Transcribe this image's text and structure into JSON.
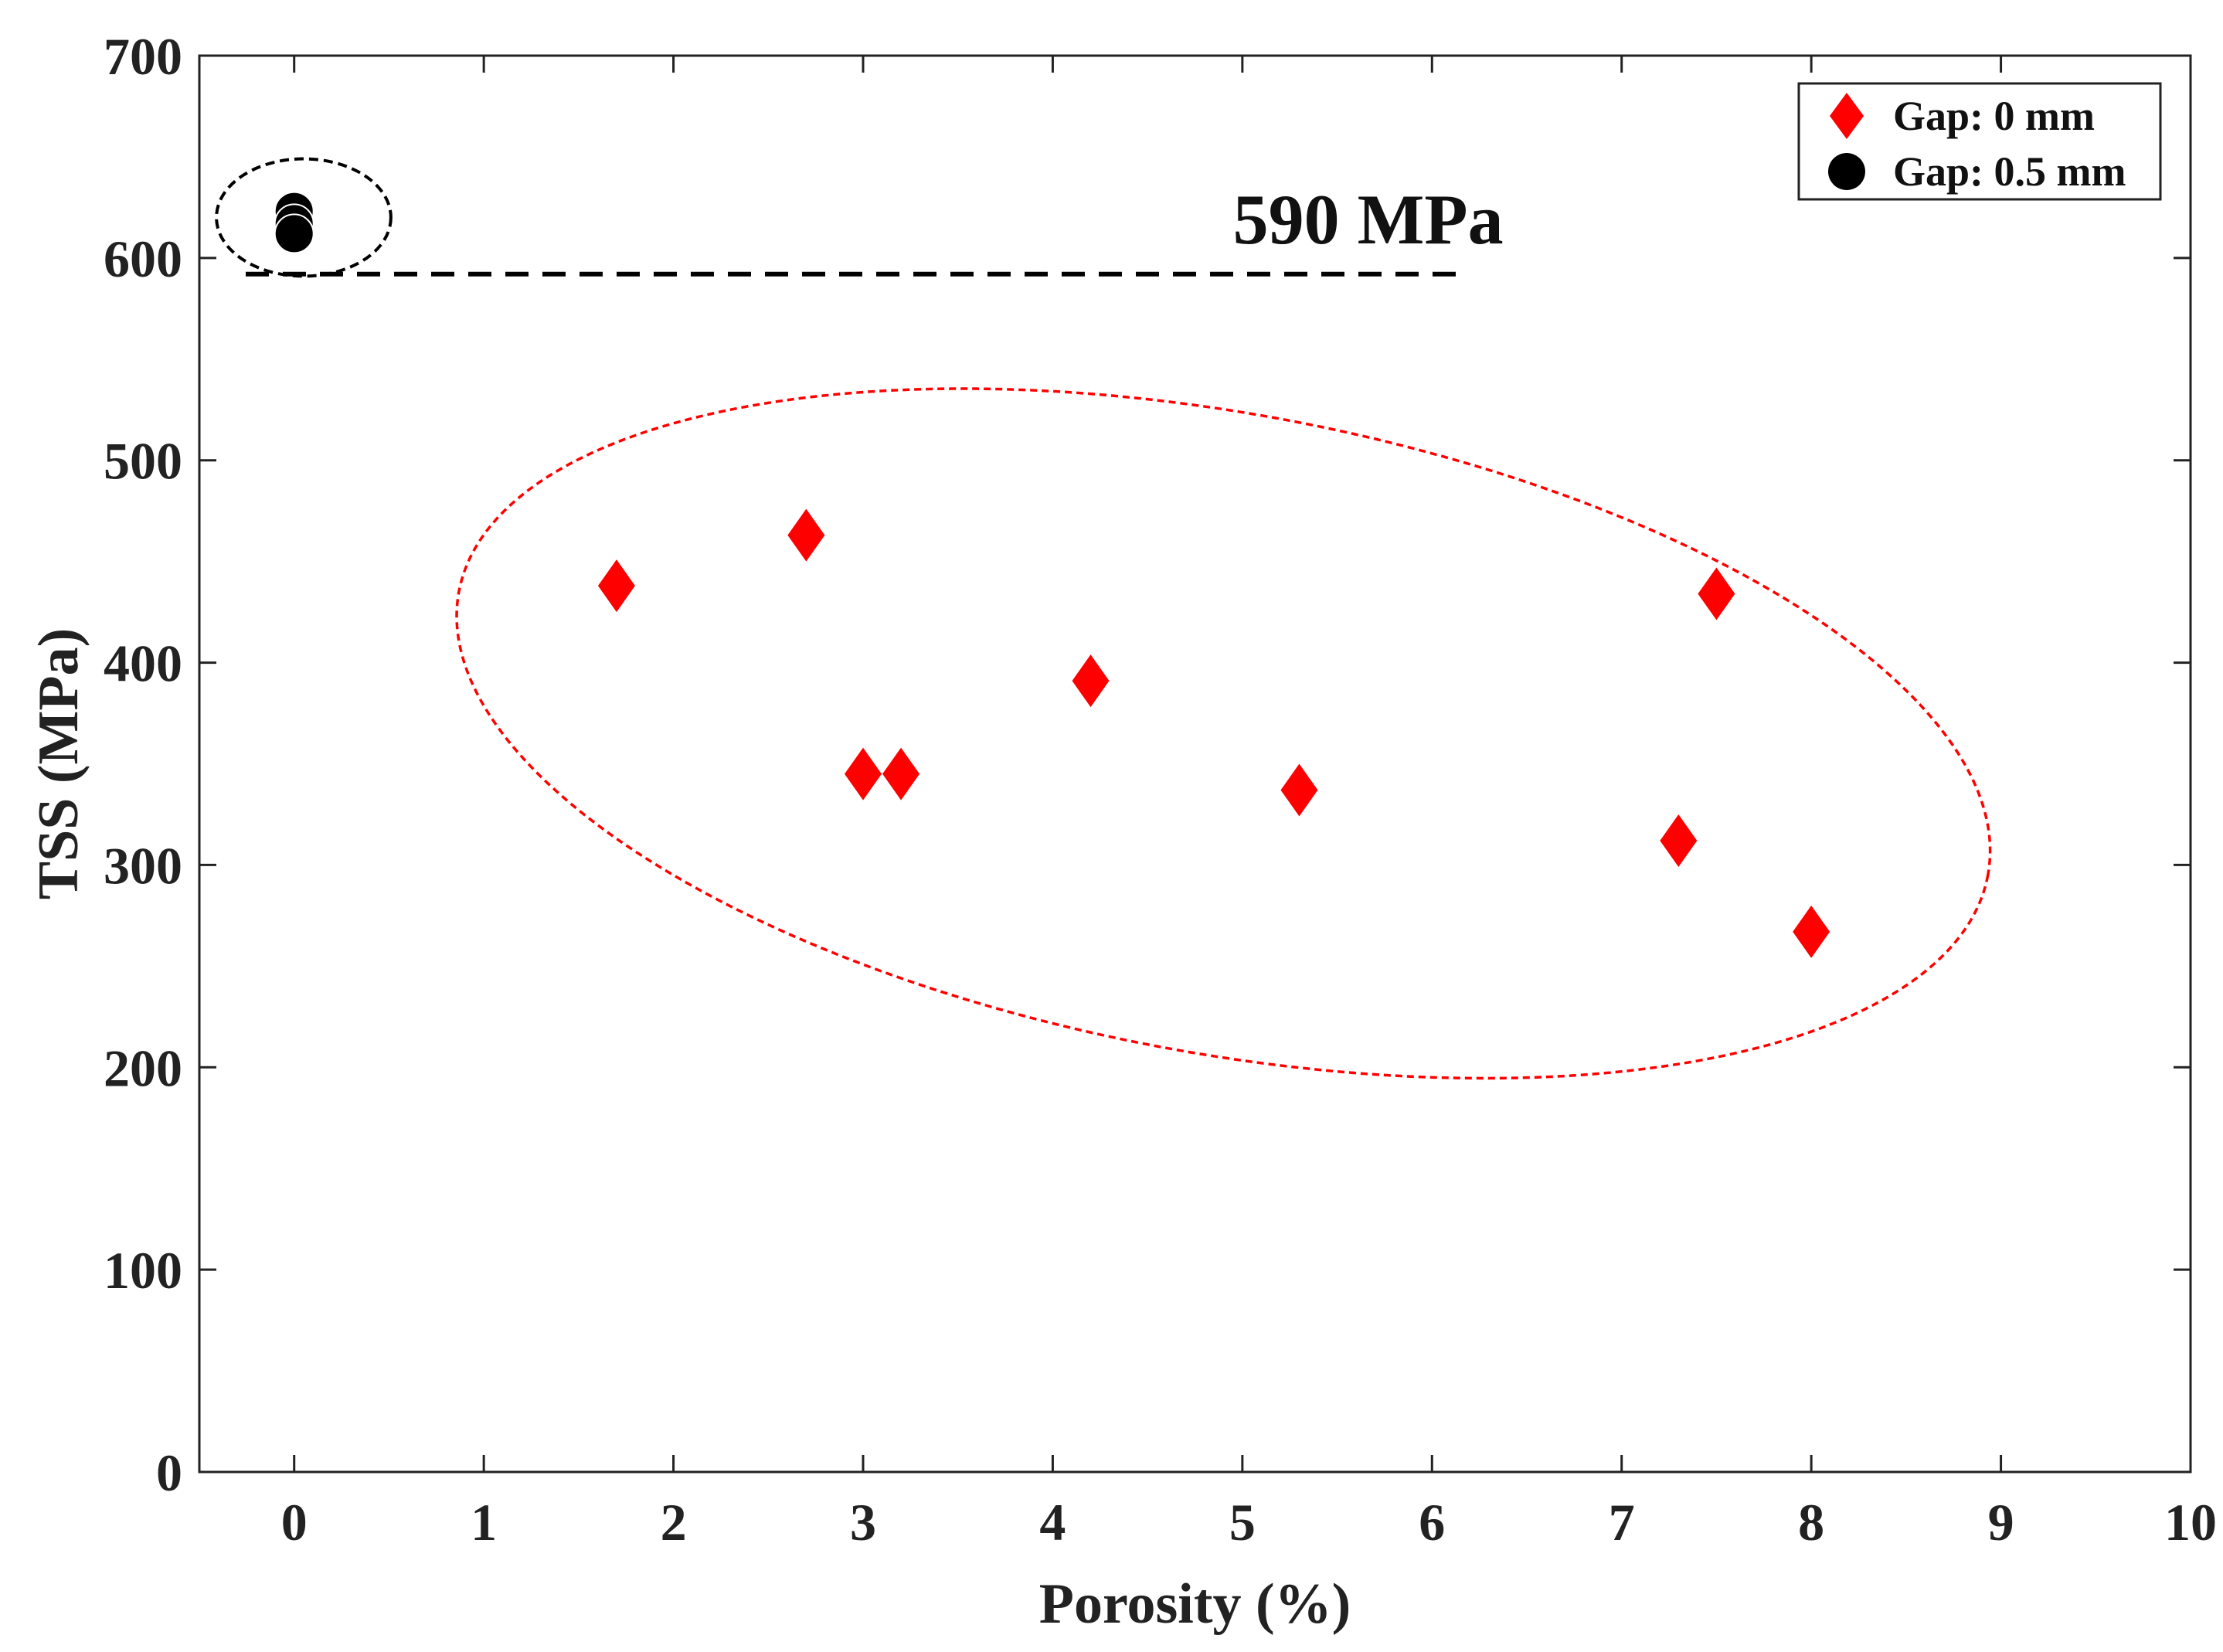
{
  "chart_data": {
    "type": "scatter",
    "title": "",
    "xlabel": "Porosity (%)",
    "ylabel": "TSS (MPa)",
    "xlim": [
      -0.5,
      10
    ],
    "ylim": [
      0,
      700
    ],
    "xticks": [
      0,
      1,
      2,
      3,
      4,
      5,
      6,
      7,
      8,
      9,
      10
    ],
    "yticks": [
      0,
      100,
      200,
      300,
      400,
      500,
      600,
      700
    ],
    "xtick_labels": [
      "0",
      "1",
      "2",
      "3",
      "4",
      "5",
      "6",
      "7",
      "8",
      "9",
      "10"
    ],
    "ytick_labels": [
      "0",
      "100",
      "200",
      "300",
      "400",
      "500",
      "600",
      "700"
    ],
    "grid": false,
    "legend_position": "top-right",
    "series": [
      {
        "name": "Gap: 0 mm",
        "marker": "diamond",
        "color": "#ff0000",
        "points": [
          {
            "x": 1.7,
            "y": 438
          },
          {
            "x": 2.7,
            "y": 463
          },
          {
            "x": 3.0,
            "y": 345
          },
          {
            "x": 3.2,
            "y": 345
          },
          {
            "x": 4.2,
            "y": 391
          },
          {
            "x": 5.3,
            "y": 337
          },
          {
            "x": 7.3,
            "y": 312
          },
          {
            "x": 7.5,
            "y": 434
          },
          {
            "x": 8.0,
            "y": 267
          }
        ]
      },
      {
        "name": "Gap: 0.5 mm",
        "marker": "circle",
        "color": "#000000",
        "points": [
          {
            "x": 0.0,
            "y": 623
          },
          {
            "x": 0.0,
            "y": 617
          },
          {
            "x": 0.0,
            "y": 612
          }
        ]
      }
    ],
    "reference_line": {
      "label": "590 MPa",
      "y": 592,
      "x_range": [
        -0.5,
        6.15
      ],
      "style": "dashed",
      "color": "#000000"
    },
    "annotations": [
      {
        "type": "ellipse",
        "style": "dashed",
        "color": "#000000",
        "center": {
          "x": 0.05,
          "y": 620
        },
        "radii": {
          "x": 0.46,
          "y": 29
        }
      },
      {
        "type": "ellipse",
        "style": "dashed",
        "color": "#ff0000",
        "center": {
          "x": 4.9,
          "y": 365
        },
        "radii": {
          "x": 4.1,
          "y": 158
        },
        "rotation_deg": 10.5
      }
    ]
  }
}
